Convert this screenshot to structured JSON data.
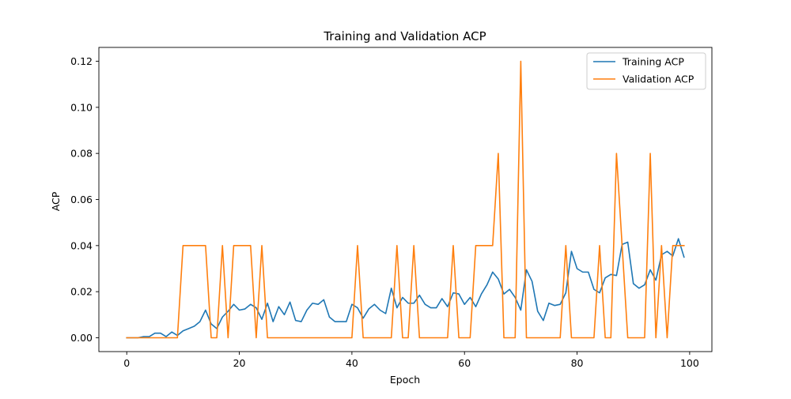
{
  "chart_data": {
    "type": "line",
    "title": "Training and Validation ACP",
    "xlabel": "Epoch",
    "ylabel": "ACP",
    "xlim": [
      -4.95,
      103.95
    ],
    "ylim": [
      -0.006,
      0.126
    ],
    "x_ticks": [
      0,
      20,
      40,
      60,
      80,
      100
    ],
    "y_ticks": [
      0.0,
      0.02,
      0.04,
      0.06,
      0.08,
      0.1,
      0.12
    ],
    "x_tick_labels": [
      "0",
      "20",
      "40",
      "60",
      "80",
      "100"
    ],
    "y_tick_labels": [
      "0.00",
      "0.02",
      "0.04",
      "0.06",
      "0.08",
      "0.10",
      "0.12"
    ],
    "legend_position": "upper right",
    "grid": false,
    "series": [
      {
        "name": "Training ACP",
        "color": "#1f77b4",
        "values": [
          0,
          0,
          0,
          0.0005,
          0.0005,
          0.002,
          0.002,
          0.0005,
          0.0025,
          0.001,
          0.003,
          0.004,
          0.005,
          0.007,
          0.012,
          0.006,
          0.004,
          0.009,
          0.0115,
          0.0145,
          0.012,
          0.0125,
          0.0145,
          0.013,
          0.008,
          0.015,
          0.007,
          0.0135,
          0.01,
          0.0155,
          0.0075,
          0.007,
          0.012,
          0.015,
          0.0145,
          0.0165,
          0.009,
          0.007,
          0.007,
          0.007,
          0.0145,
          0.013,
          0.0085,
          0.0125,
          0.0145,
          0.012,
          0.0105,
          0.0215,
          0.013,
          0.0175,
          0.015,
          0.015,
          0.0185,
          0.0145,
          0.013,
          0.013,
          0.017,
          0.0135,
          0.0195,
          0.019,
          0.0145,
          0.0175,
          0.0135,
          0.019,
          0.023,
          0.0285,
          0.0255,
          0.019,
          0.021,
          0.0175,
          0.012,
          0.0295,
          0.0245,
          0.0115,
          0.0075,
          0.015,
          0.014,
          0.0145,
          0.0195,
          0.0375,
          0.03,
          0.0285,
          0.0285,
          0.021,
          0.0195,
          0.026,
          0.0275,
          0.027,
          0.0405,
          0.0415,
          0.0235,
          0.0215,
          0.023,
          0.0295,
          0.025,
          0.036,
          0.0375,
          0.0355,
          0.043,
          0.035
        ]
      },
      {
        "name": "Validation ACP",
        "color": "#ff7f0e",
        "values": [
          0,
          0,
          0,
          0,
          0,
          0,
          0,
          0,
          0,
          0,
          0.04,
          0.04,
          0.04,
          0.04,
          0.04,
          0,
          0,
          0.04,
          0,
          0.04,
          0.04,
          0.04,
          0.04,
          0,
          0.04,
          0,
          0,
          0,
          0,
          0,
          0,
          0,
          0,
          0,
          0,
          0,
          0,
          0,
          0,
          0,
          0,
          0.04,
          0,
          0,
          0,
          0,
          0,
          0,
          0.04,
          0,
          0,
          0.04,
          0,
          0,
          0,
          0,
          0,
          0,
          0.04,
          0,
          0,
          0,
          0.04,
          0.04,
          0.04,
          0.04,
          0.08,
          0,
          0,
          0,
          0.12,
          0,
          0,
          0,
          0,
          0,
          0,
          0,
          0.04,
          0,
          0,
          0,
          0,
          0,
          0.04,
          0,
          0,
          0.08,
          0.04,
          0,
          0,
          0,
          0,
          0.08,
          0,
          0.04,
          0,
          0.04,
          0.04,
          0.04
        ]
      }
    ]
  }
}
